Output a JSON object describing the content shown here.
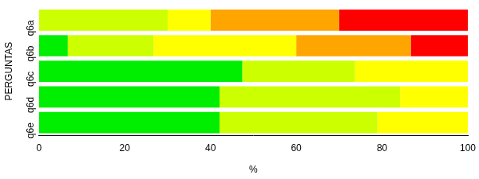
{
  "chart_data": {
    "type": "bar",
    "orientation": "horizontal",
    "stacked": true,
    "grid": false,
    "x_label": "%",
    "y_label": "PERGUNTAS",
    "categories": [
      "q6a",
      "q6b",
      "q6c",
      "q6d",
      "q6e"
    ],
    "series": [
      {
        "color": "#00ee00",
        "values": [
          0,
          6.7,
          47.4,
          42.1,
          42.1
        ]
      },
      {
        "color": "#ccff00",
        "values": [
          30,
          20,
          26.3,
          42.1,
          36.8
        ]
      },
      {
        "color": "#ffff00",
        "values": [
          10,
          33.3,
          26.3,
          15.8,
          21.1
        ]
      },
      {
        "color": "#ffa500",
        "values": [
          30,
          26.7,
          0,
          0,
          0
        ]
      },
      {
        "color": "#ff0000",
        "values": [
          30,
          13.3,
          0,
          0,
          0
        ]
      }
    ],
    "xlim": [
      0,
      100
    ],
    "xticks": [
      0,
      20,
      40,
      60,
      80,
      100
    ]
  }
}
